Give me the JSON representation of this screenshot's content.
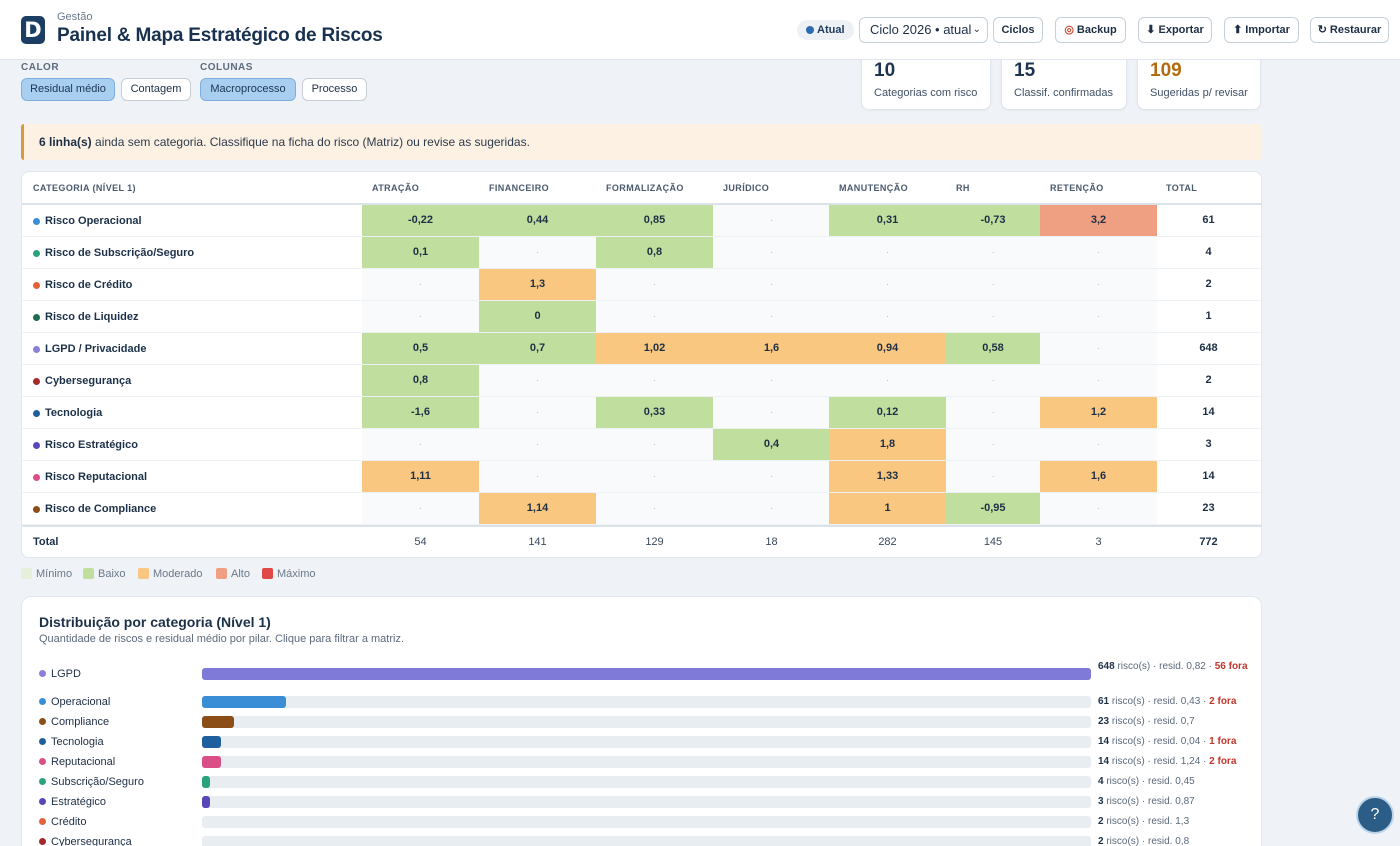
{
  "header": {
    "subtitle": "Gestão",
    "title": "Painel & Mapa Estratégico de Riscos",
    "logo_letter": "D",
    "status_badge": "Atual",
    "cycle_select": "Ciclo 2026 • atual",
    "buttons": {
      "ciclos": "Ciclos",
      "backup": "Backup",
      "exportar": "Exportar",
      "importar": "Importar",
      "restaurar": "Restaurar"
    }
  },
  "controls": {
    "calor_label": "CALOR",
    "colunas_label": "COLUNAS",
    "calor_options": [
      "Residual médio",
      "Contagem"
    ],
    "calor_selected": "Residual médio",
    "colunas_options": [
      "Macroprocesso",
      "Processo"
    ],
    "colunas_selected": "Macroprocesso"
  },
  "kpis": [
    {
      "value": "10",
      "label": "Categorias com risco",
      "color": "#1c3450"
    },
    {
      "value": "15",
      "label": "Classif. confirmadas",
      "color": "#1c3450"
    },
    {
      "value": "109",
      "label": "Sugeridas p/ revisar",
      "color": "#b36b12"
    }
  ],
  "alert": {
    "count": "6 linha(s)",
    "text": "ainda sem categoria. Classifique na ficha do risco (Matriz) ou revise as sugeridas."
  },
  "matrix": {
    "corner": "CATEGORIA (NÍVEL 1)",
    "columns": [
      "ATRAÇÃO",
      "FINANCEIRO",
      "FORMALIZAÇÃO",
      "JURÍDICO",
      "MANUTENÇÃO",
      "RH",
      "RETENÇÃO"
    ],
    "total_header": "TOTAL",
    "rows": [
      {
        "name": "Risco Operacional",
        "dot": "#3a8ed6",
        "cells": [
          [
            "-0,22",
            "low"
          ],
          [
            "0,44",
            "low"
          ],
          [
            "0,85",
            "low"
          ],
          [
            "·",
            ""
          ],
          [
            "0,31",
            "low"
          ],
          [
            "-0,73",
            "low"
          ],
          [
            "3,2",
            "high"
          ]
        ],
        "total": "61"
      },
      {
        "name": "Risco de Subscrição/Seguro",
        "dot": "#2aa37a",
        "cells": [
          [
            "0,1",
            "low"
          ],
          [
            "·",
            ""
          ],
          [
            "0,8",
            "low"
          ],
          [
            "·",
            ""
          ],
          [
            "·",
            ""
          ],
          [
            "·",
            ""
          ],
          [
            "·",
            ""
          ]
        ],
        "total": "4"
      },
      {
        "name": "Risco de Crédito",
        "dot": "#e5613a",
        "cells": [
          [
            "·",
            ""
          ],
          [
            "1,3",
            "mod"
          ],
          [
            "·",
            ""
          ],
          [
            "·",
            ""
          ],
          [
            "·",
            ""
          ],
          [
            "·",
            ""
          ],
          [
            "·",
            ""
          ]
        ],
        "total": "2"
      },
      {
        "name": "Risco de Liquidez",
        "dot": "#1d6e4c",
        "cells": [
          [
            "·",
            ""
          ],
          [
            "0",
            "low"
          ],
          [
            "·",
            ""
          ],
          [
            "·",
            ""
          ],
          [
            "·",
            ""
          ],
          [
            "·",
            ""
          ],
          [
            "·",
            ""
          ]
        ],
        "total": "1"
      },
      {
        "name": "LGPD / Privacidade",
        "dot": "#8b7fd9",
        "cells": [
          [
            "0,5",
            "low"
          ],
          [
            "0,7",
            "low"
          ],
          [
            "1,02",
            "mod"
          ],
          [
            "1,6",
            "mod"
          ],
          [
            "0,94",
            "mod"
          ],
          [
            "0,58",
            "low"
          ],
          [
            "·",
            ""
          ]
        ],
        "total": "648"
      },
      {
        "name": "Cybersegurança",
        "dot": "#a32a2a",
        "cells": [
          [
            "0,8",
            "low"
          ],
          [
            "·",
            ""
          ],
          [
            "·",
            ""
          ],
          [
            "·",
            ""
          ],
          [
            "·",
            ""
          ],
          [
            "·",
            ""
          ],
          [
            "·",
            ""
          ]
        ],
        "total": "2"
      },
      {
        "name": "Tecnologia",
        "dot": "#1f5f9e",
        "cells": [
          [
            "-1,6",
            "low"
          ],
          [
            "·",
            ""
          ],
          [
            "0,33",
            "low"
          ],
          [
            "·",
            ""
          ],
          [
            "0,12",
            "low"
          ],
          [
            "·",
            ""
          ],
          [
            "1,2",
            "mod"
          ]
        ],
        "total": "14"
      },
      {
        "name": "Risco Estratégico",
        "dot": "#5b46b8",
        "cells": [
          [
            "·",
            ""
          ],
          [
            "·",
            ""
          ],
          [
            "·",
            ""
          ],
          [
            "0,4",
            "low"
          ],
          [
            "1,8",
            "mod"
          ],
          [
            "·",
            ""
          ],
          [
            "·",
            ""
          ]
        ],
        "total": "3"
      },
      {
        "name": "Risco Reputacional",
        "dot": "#d94f86",
        "cells": [
          [
            "1,11",
            "mod"
          ],
          [
            "·",
            ""
          ],
          [
            "·",
            ""
          ],
          [
            "·",
            ""
          ],
          [
            "1,33",
            "mod"
          ],
          [
            "·",
            ""
          ],
          [
            "1,6",
            "mod"
          ]
        ],
        "total": "14"
      },
      {
        "name": "Risco de Compliance",
        "dot": "#8a4e16",
        "cells": [
          [
            "·",
            ""
          ],
          [
            "1,14",
            "mod"
          ],
          [
            "·",
            ""
          ],
          [
            "·",
            ""
          ],
          [
            "1",
            "mod"
          ],
          [
            "-0,95",
            "low"
          ],
          [
            "·",
            ""
          ]
        ],
        "total": "23"
      }
    ],
    "totals_label": "Total",
    "totals": [
      "54",
      "141",
      "129",
      "18",
      "282",
      "145",
      "3",
      "772"
    ]
  },
  "legend": [
    {
      "label": "Mínimo",
      "color": "#e6efdc"
    },
    {
      "label": "Baixo",
      "color": "#c0df9f"
    },
    {
      "label": "Moderado",
      "color": "#f9c780"
    },
    {
      "label": "Alto",
      "color": "#f0a082"
    },
    {
      "label": "Máximo",
      "color": "#e04848"
    }
  ],
  "distribution": {
    "title": "Distribuição por categoria (Nível 1)",
    "subtitle": "Quantidade de riscos e residual médio por pilar. Clique para filtrar a matriz.",
    "items": [
      {
        "name": "LGPD",
        "dot": "#8b7fd9",
        "count": 648,
        "count_text": "648",
        "info": " risco(s) · resid. 0,82 · ",
        "out": "56 fora",
        "color": "#7f79d8"
      },
      {
        "name": "Operacional",
        "dot": "#3a8ed6",
        "count": 61,
        "count_text": "61",
        "info": " risco(s) · resid. 0,43 · ",
        "out": "2 fora",
        "color": "#3a8ed6"
      },
      {
        "name": "Compliance",
        "dot": "#8a4e16",
        "count": 23,
        "count_text": "23",
        "info": " risco(s) · resid. 0,7",
        "out": "",
        "color": "#8a4e16"
      },
      {
        "name": "Tecnologia",
        "dot": "#1f5f9e",
        "count": 14,
        "count_text": "14",
        "info": " risco(s) · resid. 0,04 · ",
        "out": "1 fora",
        "color": "#1f5f9e"
      },
      {
        "name": "Reputacional",
        "dot": "#d94f86",
        "count": 14,
        "count_text": "14",
        "info": " risco(s) · resid. 1,24 · ",
        "out": "2 fora",
        "color": "#d94f86"
      },
      {
        "name": "Subscrição/Seguro",
        "dot": "#2aa37a",
        "count": 4,
        "count_text": "4",
        "info": " risco(s) · resid. 0,45",
        "out": "",
        "color": "#2aa37a"
      },
      {
        "name": "Estratégico",
        "dot": "#5b46b8",
        "count": 3,
        "count_text": "3",
        "info": " risco(s) · resid. 0,87",
        "out": "",
        "color": "#5b46b8"
      },
      {
        "name": "Crédito",
        "dot": "#e5613a",
        "count": 2,
        "count_text": "2",
        "info": " risco(s) · resid. 1,3",
        "out": "",
        "color": "#e5613a"
      },
      {
        "name": "Cybersegurança",
        "dot": "#a32a2a",
        "count": 2,
        "count_text": "2",
        "info": " risco(s) · resid. 0,8",
        "out": "",
        "color": "#a32a2a"
      }
    ]
  },
  "help_icon": "?"
}
